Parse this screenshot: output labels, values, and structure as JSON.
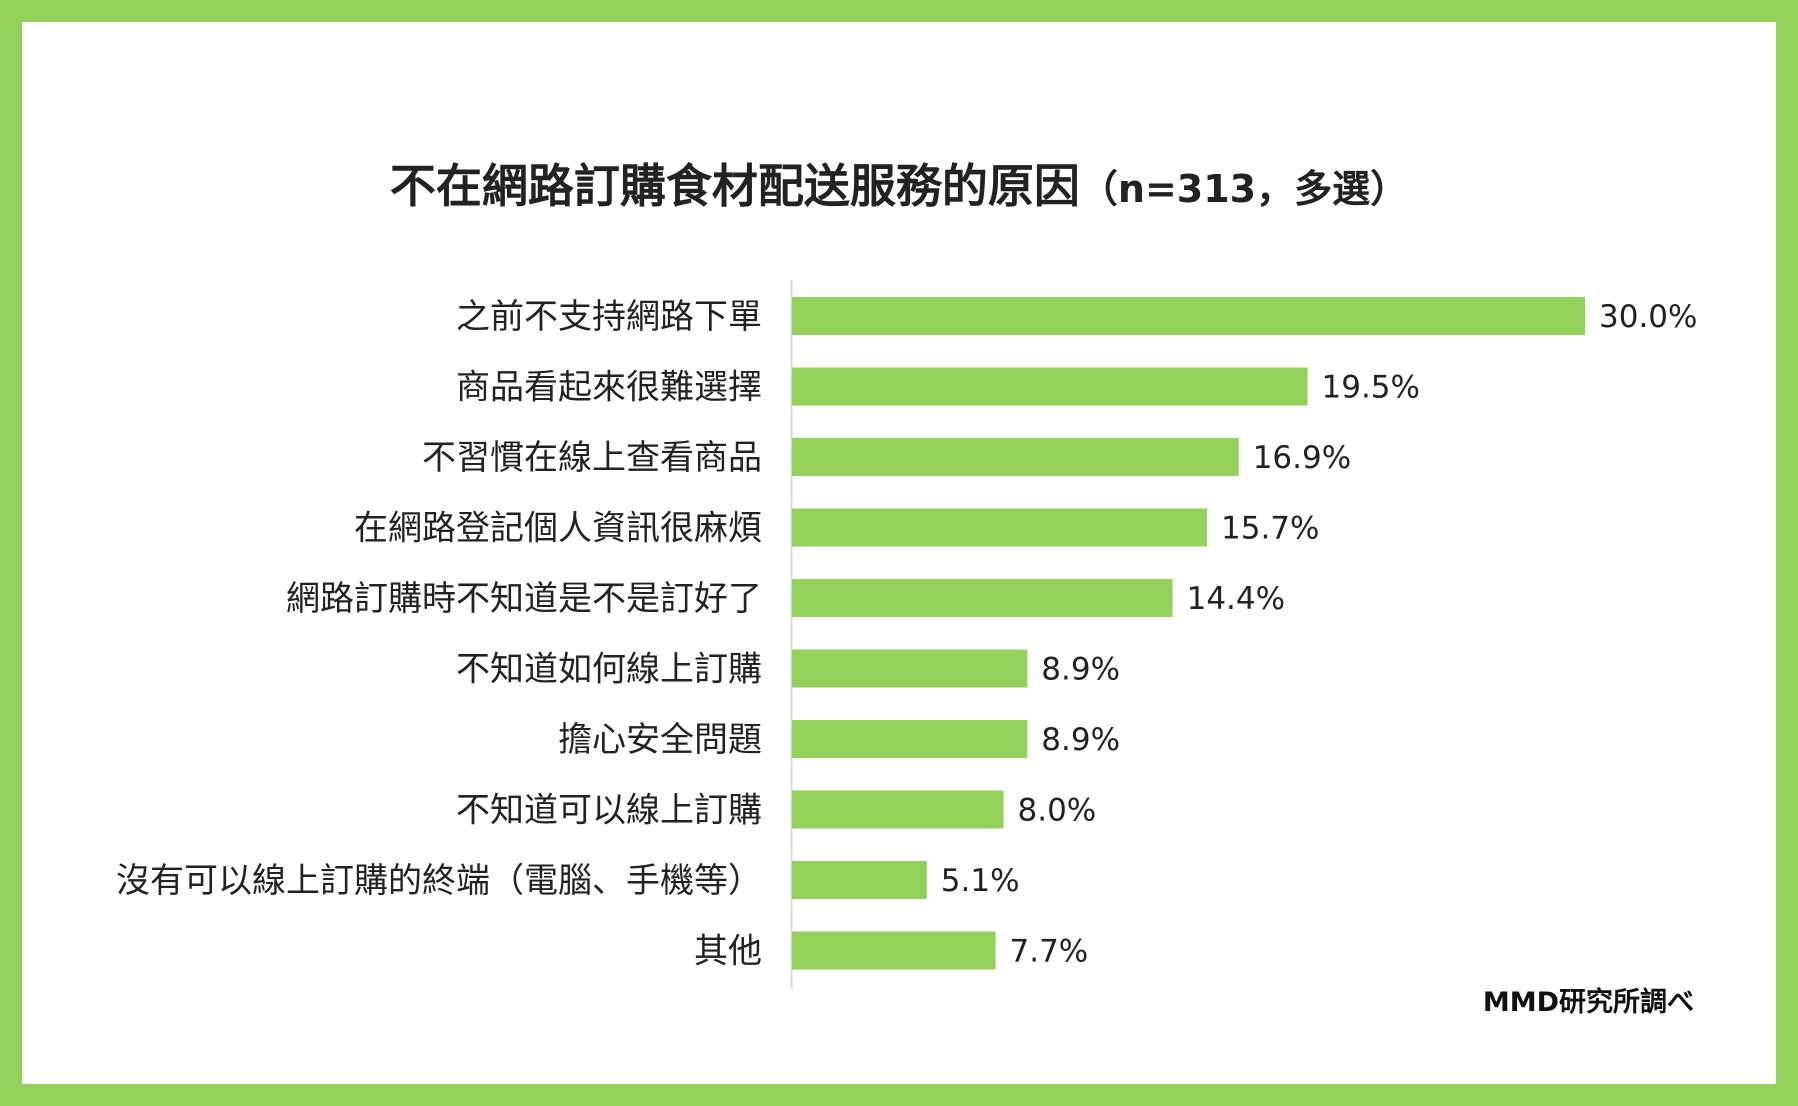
{
  "title": "不在網路訂購食材配送服務的原因",
  "subtitle": "（n=313，多選）",
  "source": "MMD研究所調べ",
  "colors": {
    "border": "#94d15a",
    "bar": "#94d15a",
    "axis": "#d9d9d9"
  },
  "chart_data": {
    "type": "bar",
    "orientation": "horizontal",
    "categories": [
      "之前不支持網路下單",
      "商品看起來很難選擇",
      "不習慣在線上查看商品",
      "在網路登記個人資訊很麻煩",
      "網路訂購時不知道是不是訂好了",
      "不知道如何線上訂購",
      "擔心安全問題",
      "不知道可以線上訂購",
      "沒有可以線上訂購的終端（電腦、手機等）",
      "其他"
    ],
    "values": [
      30.0,
      19.5,
      16.9,
      15.7,
      14.4,
      8.9,
      8.9,
      8.0,
      5.1,
      7.7
    ],
    "value_labels": [
      "30.0%",
      "19.5%",
      "16.9%",
      "15.7%",
      "14.4%",
      "8.9%",
      "8.9%",
      "8.0%",
      "5.1%",
      "7.7%"
    ],
    "unit": "%",
    "xlim": [
      0,
      30
    ],
    "grid": false,
    "legend": "none"
  }
}
